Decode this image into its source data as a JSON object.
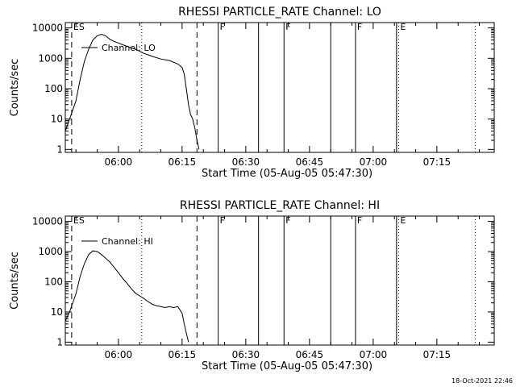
{
  "footer_timestamp": "18-Oct-2021 22:46",
  "colors": {
    "background": "#ffffff",
    "foreground": "#000000"
  },
  "chart_data": [
    {
      "type": "line",
      "title": "RHESSI PARTICLE_RATE Channel: LO",
      "xlabel": "Start Time (05-Aug-05 05:47:30)",
      "ylabel": "Counts/sec",
      "y_scale": "log",
      "xlim": [
        "05:47:30",
        "07:28:30"
      ],
      "ylim": [
        0.8,
        15000
      ],
      "x_ticks": [
        "06:00",
        "06:15",
        "06:30",
        "06:45",
        "07:00",
        "07:15"
      ],
      "y_ticks": [
        "1",
        "10",
        "100",
        "1000",
        "10000"
      ],
      "legend": {
        "position": "top-left",
        "entries": [
          "Channel: LO"
        ]
      },
      "series": [
        {
          "name": "Channel: LO",
          "x": [
            "05:47:30",
            "05:48:30",
            "05:50:00",
            "05:51:00",
            "05:52:00",
            "05:53:00",
            "05:54:00",
            "05:55:00",
            "05:56:00",
            "05:57:00",
            "05:58:00",
            "05:59:00",
            "06:00:00",
            "06:01:00",
            "06:02:00",
            "06:03:00",
            "06:04:00",
            "06:05:00",
            "06:06:00",
            "06:07:00",
            "06:08:00",
            "06:10:00",
            "06:12:00",
            "06:14:00",
            "06:15:00",
            "06:15:30",
            "06:16:00",
            "06:16:30",
            "06:17:00",
            "06:17:30",
            "06:18:00",
            "06:18:30",
            "06:19:00"
          ],
          "y": [
            4,
            10,
            40,
            200,
            800,
            2000,
            4000,
            5500,
            6200,
            5500,
            4200,
            3600,
            3200,
            2800,
            2500,
            2200,
            2000,
            1700,
            1450,
            1300,
            1150,
            950,
            850,
            650,
            500,
            300,
            100,
            30,
            14,
            10,
            5,
            2,
            1
          ]
        }
      ],
      "annotations": [
        {
          "label": "ES",
          "time": "05:49:00",
          "style": "dashed"
        },
        {
          "label": "",
          "time": "06:18:30",
          "style": "dashed"
        },
        {
          "label": "",
          "time": "06:05:30",
          "style": "dotted"
        },
        {
          "label": "F",
          "time": "06:23:30",
          "style": "solid"
        },
        {
          "label": "",
          "time": "06:33:00",
          "style": "solid"
        },
        {
          "label": "F",
          "time": "06:39:00",
          "style": "solid"
        },
        {
          "label": "",
          "time": "06:50:00",
          "style": "solid"
        },
        {
          "label": "F",
          "time": "06:55:50",
          "style": "solid"
        },
        {
          "label": "",
          "time": "07:05:30",
          "style": "solid"
        },
        {
          "label": "E",
          "time": "07:06:00",
          "style": "dotted"
        },
        {
          "label": "",
          "time": "07:24:00",
          "style": "dotted"
        }
      ]
    },
    {
      "type": "line",
      "title": "RHESSI PARTICLE_RATE Channel: HI",
      "xlabel": "Start Time (05-Aug-05 05:47:30)",
      "ylabel": "Counts/sec",
      "y_scale": "log",
      "xlim": [
        "05:47:30",
        "07:28:30"
      ],
      "ylim": [
        0.8,
        15000
      ],
      "x_ticks": [
        "06:00",
        "06:15",
        "06:30",
        "06:45",
        "07:00",
        "07:15"
      ],
      "y_ticks": [
        "1",
        "10",
        "100",
        "1000",
        "10000"
      ],
      "legend": {
        "position": "top-left",
        "entries": [
          "Channel: HI"
        ]
      },
      "series": [
        {
          "name": "Channel: HI",
          "x": [
            "05:47:30",
            "05:48:30",
            "05:50:00",
            "05:51:00",
            "05:52:00",
            "05:53:00",
            "05:54:00",
            "05:55:00",
            "05:56:00",
            "05:57:00",
            "05:58:00",
            "05:59:00",
            "06:00:00",
            "06:01:00",
            "06:02:00",
            "06:03:00",
            "06:04:00",
            "06:05:00",
            "06:06:00",
            "06:07:00",
            "06:08:00",
            "06:09:00",
            "06:10:00",
            "06:11:00",
            "06:12:00",
            "06:13:00",
            "06:14:00",
            "06:15:00",
            "06:15:30",
            "06:16:00",
            "06:16:30"
          ],
          "y": [
            5,
            10,
            40,
            150,
            400,
            800,
            1050,
            1000,
            800,
            600,
            450,
            300,
            200,
            130,
            90,
            60,
            42,
            34,
            28,
            22,
            18,
            16,
            15,
            14,
            15,
            14,
            15,
            9,
            4,
            2,
            1
          ]
        }
      ],
      "annotations": [
        {
          "label": "ES",
          "time": "05:49:00",
          "style": "dashed"
        },
        {
          "label": "",
          "time": "06:18:30",
          "style": "dashed"
        },
        {
          "label": "",
          "time": "06:05:30",
          "style": "dotted"
        },
        {
          "label": "F",
          "time": "06:23:30",
          "style": "solid"
        },
        {
          "label": "",
          "time": "06:33:00",
          "style": "solid"
        },
        {
          "label": "F",
          "time": "06:39:00",
          "style": "solid"
        },
        {
          "label": "",
          "time": "06:50:00",
          "style": "solid"
        },
        {
          "label": "F",
          "time": "06:55:50",
          "style": "solid"
        },
        {
          "label": "",
          "time": "07:05:30",
          "style": "solid"
        },
        {
          "label": "E",
          "time": "07:06:00",
          "style": "dotted"
        },
        {
          "label": "",
          "time": "07:24:00",
          "style": "dotted"
        }
      ]
    }
  ]
}
